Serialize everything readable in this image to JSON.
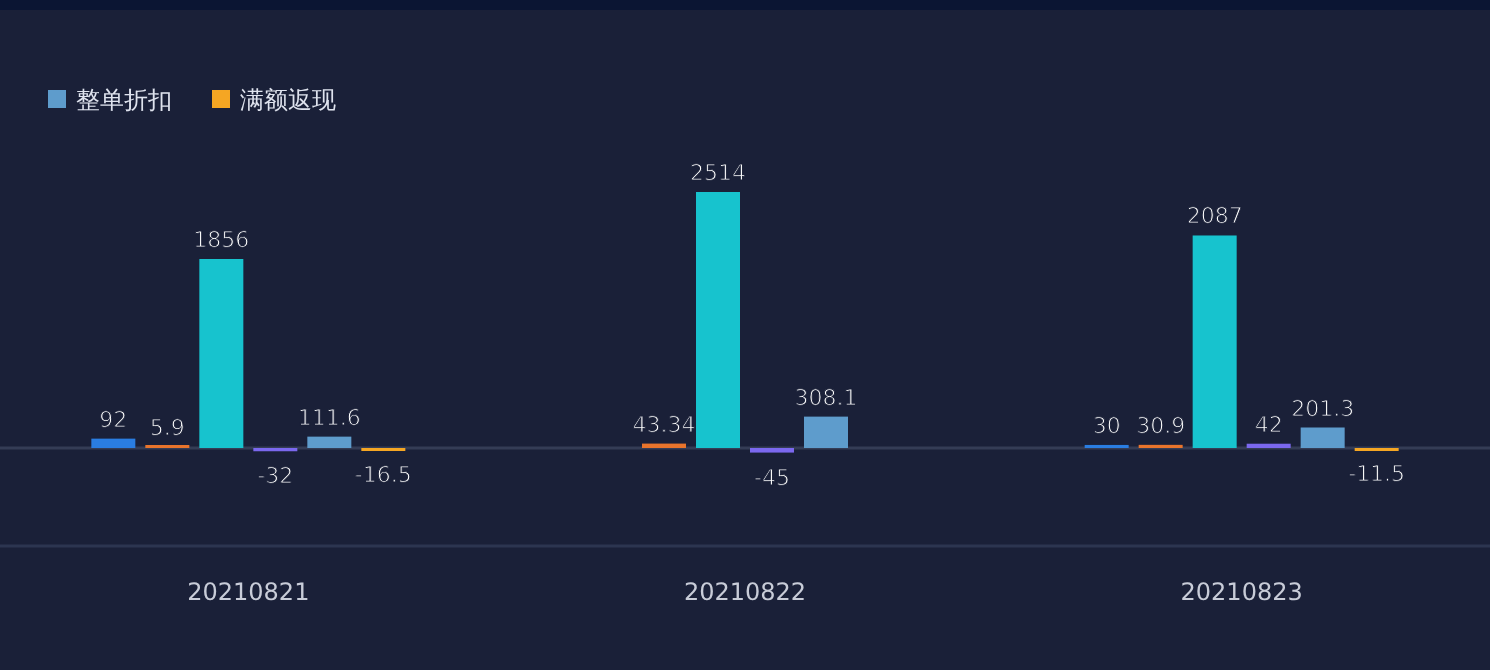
{
  "chart_data": {
    "type": "bar",
    "categories": [
      "20210821",
      "20210822",
      "20210823"
    ],
    "series": [
      {
        "color": "#2a7de1",
        "values": [
          92,
          null,
          30
        ]
      },
      {
        "color": "#e8742c",
        "values": [
          5.9,
          43.34,
          30.9
        ]
      },
      {
        "color": "#17c3ce",
        "values": [
          1856,
          2514,
          2087
        ]
      },
      {
        "color": "#7b68ee",
        "values": [
          -32,
          -45,
          42
        ]
      },
      {
        "name": "整单折扣",
        "color": "#5e9ccc",
        "values": [
          111.6,
          308.1,
          201.3
        ]
      },
      {
        "name": "满额返现",
        "color": "#f5a623",
        "values": [
          -16.5,
          null,
          -11.5
        ]
      }
    ],
    "data_labels": true,
    "legend": "top left",
    "grid": false
  }
}
